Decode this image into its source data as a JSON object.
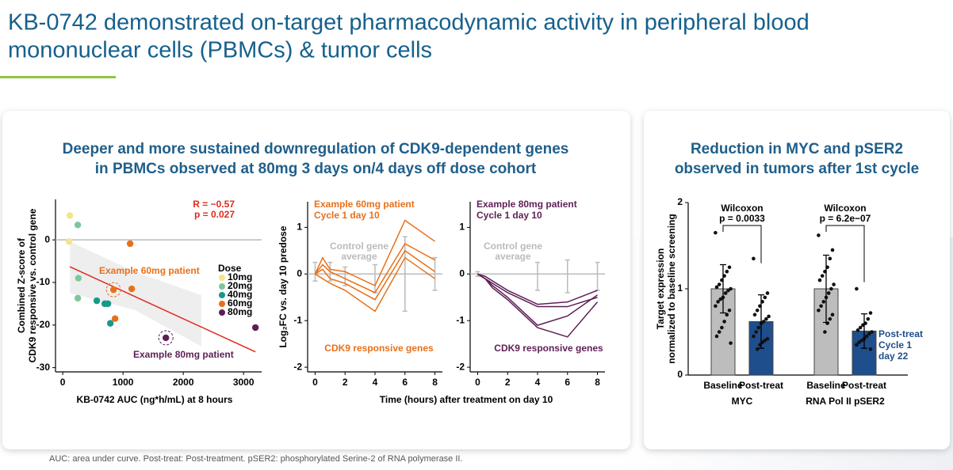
{
  "title": [
    "KB-0742 demonstrated on-target pharmacodynamic activity in peripheral blood",
    "mononuclear cells (PBMCs) & tumor cells"
  ],
  "left_panel": {
    "title": [
      "Deeper and more sustained downregulation of CDK9-dependent genes",
      "in PBMCs observed at 80mg 3 days on/4 days off dose cohort"
    ]
  },
  "right_panel": {
    "title": [
      "Reduction in MYC and pSER2",
      "observed in tumors after 1st cycle"
    ]
  },
  "footnote": "AUC: area under curve. Post-treat: Post-treatment. pSER2: phosphorylated Serine-2 of RNA polymerase II.",
  "chart_data": [
    {
      "type": "scatter",
      "ylabel": [
        "Combined Z-score of",
        "CDK9 responsive vs. control gene"
      ],
      "xlabel": "KB-0742 AUC (ng*h/mL) at 8 hours",
      "xlim": [
        -120,
        3300
      ],
      "ylim": [
        -31,
        9.5
      ],
      "xticks": [
        0,
        1000,
        2000,
        3000
      ],
      "yticks": [
        0,
        -10,
        -20,
        -30
      ],
      "reference_line": 0,
      "legend_title": "Dose",
      "series": [
        {
          "name": "10mg",
          "color": "#f3e58a",
          "x": [
            118,
            105
          ],
          "values": [
            5.7,
            -0.4
          ]
        },
        {
          "name": "20mg",
          "color": "#7cc89b",
          "x": [
            250,
            260,
            250
          ],
          "values": [
            3.5,
            -9,
            -13.7
          ]
        },
        {
          "name": "40mg",
          "color": "#17998a",
          "x": [
            565,
            697,
            750,
            790
          ],
          "values": [
            -14.3,
            -15,
            -15,
            -19.6
          ]
        },
        {
          "name": "60mg",
          "color": "#e8701a",
          "x": [
            1118,
            842,
            1145,
            868
          ],
          "values": [
            -0.9,
            -11.7,
            -11.5,
            -18.5
          ]
        },
        {
          "name": "80mg",
          "color": "#5e1f55",
          "x": [
            1711,
            3197
          ],
          "values": [
            -23,
            -20.6
          ]
        }
      ],
      "fit": {
        "color": "#e02a1e",
        "x": [
          118,
          3197
        ],
        "y": [
          -6.3,
          -26.3
        ]
      },
      "band": {
        "color": "#eeeeee",
        "x": [
          118,
          1200,
          2300
        ],
        "upper": [
          -0.4,
          -7.5,
          -13
        ],
        "lower": [
          -12.5,
          -16.5,
          -25
        ]
      },
      "annotations": [
        {
          "text": "R = −0.57",
          "color": "#e02a1e"
        },
        {
          "text": "p = 0.027",
          "color": "#e02a1e"
        },
        {
          "text": "Example 60mg patient",
          "color": "#e8701a"
        },
        {
          "text": "Example 80mg patient",
          "color": "#5e1f55"
        }
      ]
    },
    {
      "type": "line",
      "ylabel": [
        "Log₂FC vs. day 10 predose"
      ],
      "xlabel": "Time (hours) after treatment on day 10",
      "xlim": [
        -0.5,
        8.5
      ],
      "ylim": [
        -2.1,
        1.55
      ],
      "xticks": [
        0,
        2,
        4,
        6,
        8
      ],
      "yticks": [
        1,
        0,
        -1,
        -2
      ],
      "reference_line": 0,
      "x": [
        0,
        0.5,
        1,
        2,
        4,
        6,
        8
      ],
      "series": [
        {
          "color": "#e8701a",
          "values": [
            0,
            0.35,
            0.1,
            0.05,
            -0.25,
            1.15,
            0.7
          ]
        },
        {
          "color": "#e8701a",
          "values": [
            0,
            0.2,
            0.05,
            -0.1,
            -0.4,
            0.65,
            0.3
          ]
        },
        {
          "color": "#e8701a",
          "values": [
            0,
            0.1,
            -0.1,
            -0.2,
            -0.55,
            0.5,
            0.05
          ]
        },
        {
          "color": "#e8701a",
          "values": [
            0,
            -0.1,
            -0.2,
            -0.35,
            -0.8,
            0.35,
            -0.1
          ]
        }
      ],
      "control": {
        "color": "#bbbbbb",
        "x": [
          0,
          1,
          2,
          4,
          6,
          8
        ],
        "values": [
          0.05,
          0.05,
          -0.05,
          -0.1,
          0,
          0
        ],
        "errors": [
          0.2,
          0.2,
          0.2,
          0.3,
          0.8,
          0.35
        ]
      },
      "annotations": [
        {
          "text": "Example 60mg patient",
          "color": "#e8701a"
        },
        {
          "text": "Cycle 1 day 10",
          "color": "#e8701a"
        },
        {
          "text": "Control gene",
          "color": "#bbbbbb"
        },
        {
          "text": "average",
          "color": "#bbbbbb"
        },
        {
          "text": "CDK9 responsive genes",
          "color": "#e8701a"
        }
      ]
    },
    {
      "type": "line",
      "xlim": [
        -0.5,
        8.5
      ],
      "ylim": [
        -2.1,
        1.55
      ],
      "xticks": [
        0,
        2,
        4,
        6,
        8
      ],
      "yticks": [
        1,
        0,
        -1,
        -2
      ],
      "reference_line": 0,
      "x": [
        0,
        0.5,
        1,
        2,
        4,
        6,
        8
      ],
      "series": [
        {
          "color": "#5e1f55",
          "values": [
            0,
            -0.05,
            -0.15,
            -0.35,
            -0.65,
            -0.6,
            -0.35
          ]
        },
        {
          "color": "#5e1f55",
          "values": [
            0,
            -0.1,
            -0.2,
            -0.4,
            -0.7,
            -0.7,
            -0.5
          ]
        },
        {
          "color": "#5e1f55",
          "values": [
            0,
            -0.1,
            -0.25,
            -0.5,
            -1.1,
            -0.9,
            -0.45
          ]
        },
        {
          "color": "#5e1f55",
          "values": [
            0,
            -0.1,
            -0.3,
            -0.55,
            -1.15,
            -1.35,
            -0.6
          ]
        }
      ],
      "control": {
        "color": "#bbbbbb",
        "x": [
          0,
          4,
          6,
          8
        ],
        "values": [
          0,
          -0.05,
          -0.05,
          -0.05
        ],
        "errors": [
          0.05,
          0.3,
          0.35,
          0.3
        ]
      },
      "annotations": [
        {
          "text": "Example 80mg patient",
          "color": "#5e1f55"
        },
        {
          "text": "Cycle 1 day 10",
          "color": "#5e1f55"
        },
        {
          "text": "Control gene",
          "color": "#bbbbbb"
        },
        {
          "text": "average",
          "color": "#bbbbbb"
        },
        {
          "text": "CDK9 responsive genes",
          "color": "#5e1f55"
        }
      ]
    },
    {
      "type": "bar",
      "ylabel": [
        "Target expression",
        "normalized to baseline screening"
      ],
      "ylim": [
        0,
        2
      ],
      "yticks": [
        0,
        1,
        2
      ],
      "categories": [
        "MYC",
        "RNA Pol II pSER2"
      ],
      "series": [
        {
          "name": "Baseline",
          "color": "#bdbdbd",
          "values": [
            1,
            1
          ],
          "errors": [
            0.28,
            0.39
          ],
          "points": [
            [
              1.65,
              1.25,
              1.2,
              1.15,
              1.1,
              1.05,
              1.02,
              1.0,
              0.98,
              0.95,
              0.9,
              0.88,
              0.85,
              0.8,
              0.75,
              0.7,
              0.62,
              0.55,
              0.5,
              0.45,
              0.37
            ],
            [
              1.62,
              1.45,
              1.35,
              1.25,
              1.2,
              1.15,
              1.1,
              1.05,
              1.0,
              0.95,
              0.9,
              0.85,
              0.8,
              0.75,
              0.7,
              0.65,
              0.6,
              0.5
            ]
          ]
        },
        {
          "name": "Post-treat",
          "color": "#1f4e8c",
          "values": [
            0.62,
            0.51
          ],
          "errors": [
            0.31,
            0.2
          ],
          "points": [
            [
              1.35,
              0.95,
              0.9,
              0.85,
              0.8,
              0.75,
              0.7,
              0.68,
              0.65,
              0.62,
              0.6,
              0.55,
              0.5,
              0.45,
              0.42,
              0.4,
              0.38,
              0.35,
              0.3
            ],
            [
              1.0,
              0.72,
              0.65,
              0.6,
              0.58,
              0.55,
              0.52,
              0.5,
              0.48,
              0.45,
              0.42,
              0.4,
              0.38,
              0.35,
              0.3
            ]
          ]
        }
      ],
      "annotations": [
        {
          "text": "Wilcoxon",
          "color": "#000000"
        },
        {
          "text": "p = 0.0033",
          "color": "#000000"
        },
        {
          "text": "Wilcoxon",
          "color": "#000000"
        },
        {
          "text": "p = 6.2e−07",
          "color": "#000000"
        },
        {
          "text": "Post-treat",
          "color": "#1f4e8c"
        },
        {
          "text": "Cycle 1",
          "color": "#1f4e8c"
        },
        {
          "text": "day 22",
          "color": "#1f4e8c"
        }
      ]
    }
  ]
}
